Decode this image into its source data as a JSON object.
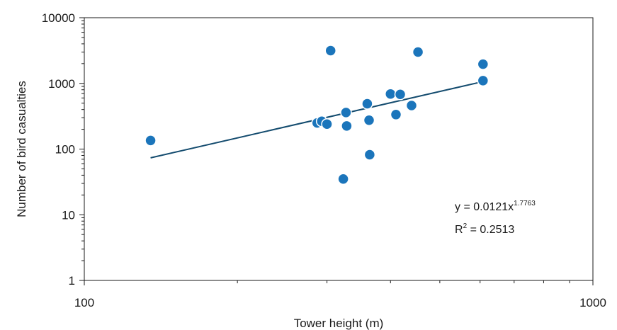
{
  "chart_data": {
    "type": "scatter",
    "xlabel": "Tower height (m)",
    "ylabel": "Number of bird casualties",
    "x_scale": "log",
    "y_scale": "log",
    "xlim": [
      100,
      1000
    ],
    "ylim": [
      1,
      10000
    ],
    "x_tick_labels": [
      "100",
      "1000"
    ],
    "y_tick_labels": [
      "1",
      "10",
      "100",
      "1000",
      "10000"
    ],
    "grid": false,
    "points": [
      {
        "x": 135,
        "y": 135
      },
      {
        "x": 287,
        "y": 250
      },
      {
        "x": 293,
        "y": 265
      },
      {
        "x": 300,
        "y": 240
      },
      {
        "x": 305,
        "y": 3150
      },
      {
        "x": 323,
        "y": 35
      },
      {
        "x": 327,
        "y": 360
      },
      {
        "x": 328,
        "y": 225
      },
      {
        "x": 360,
        "y": 490
      },
      {
        "x": 363,
        "y": 275
      },
      {
        "x": 364,
        "y": 82
      },
      {
        "x": 400,
        "y": 690
      },
      {
        "x": 410,
        "y": 335
      },
      {
        "x": 418,
        "y": 680
      },
      {
        "x": 440,
        "y": 460
      },
      {
        "x": 453,
        "y": 3000
      },
      {
        "x": 608,
        "y": 1960
      },
      {
        "x": 608,
        "y": 1100
      }
    ],
    "trendline": {
      "type": "power",
      "a": 0.0121,
      "b": 1.7763,
      "x_range": [
        135,
        608
      ]
    },
    "annotation": {
      "equation_base": "y = 0.0121x",
      "equation_exponent": "1.7763",
      "r2_label": "R",
      "r2_sup": "2",
      "r2_value": " = 0.2513"
    },
    "colors": {
      "marker": "#1b75bb",
      "marker_stroke": "#ffffff",
      "trendline": "#134b6e",
      "axis": "#1a1a1a"
    }
  }
}
